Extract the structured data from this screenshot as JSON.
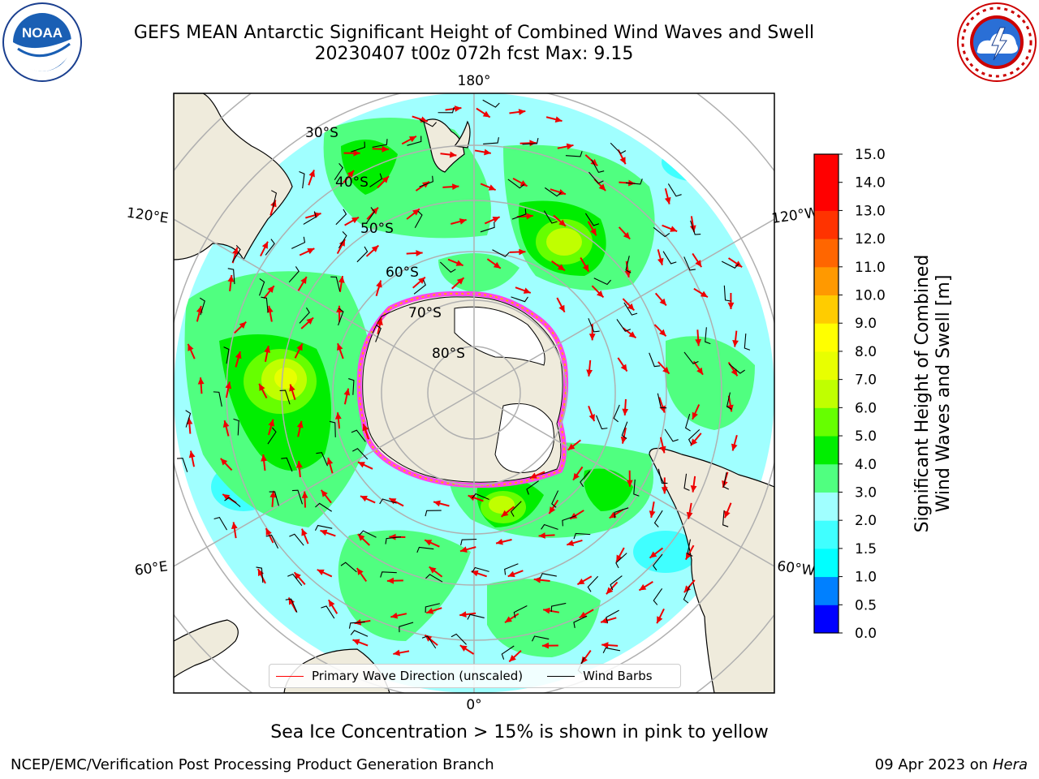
{
  "header": {
    "title_line1": "GEFS MEAN Antarctic Significant Height of Combined Wind Waves and Swell",
    "title_line2": "20230407 t00z 072h fcst   Max: 9.15"
  },
  "logos": {
    "left": {
      "text": "NOAA",
      "ring_text": "NATIONAL OCEANIC AND ATMOSPHERIC ADMINISTRATION · U.S. DEPARTMENT OF COMMERCE"
    },
    "right": {
      "ring_text": "NATIONAL WEATHER SERVICE"
    }
  },
  "map": {
    "projection": "south-polar-stereographic",
    "longitude_labels": {
      "top": "180°",
      "bottom": "0°",
      "upper_left": "120°E",
      "upper_right": "120°W",
      "lower_left": "60°E",
      "lower_right": "60°W"
    },
    "latitude_labels": [
      "30°S",
      "40°S",
      "50°S",
      "60°S",
      "70°S",
      "80°S"
    ]
  },
  "legend": {
    "items": [
      {
        "label": "Primary Wave Direction (unscaled)",
        "color": "#ff0000"
      },
      {
        "label": "Wind Barbs",
        "color": "#000000"
      }
    ]
  },
  "colorbar": {
    "label_line1": "Significant Height of Combined",
    "label_line2": "Wind Waves and Swell [m]",
    "ticks": [
      "0.0",
      "0.5",
      "1.0",
      "1.5",
      "2.0",
      "3.0",
      "4.0",
      "5.0",
      "6.0",
      "7.0",
      "8.0",
      "9.0",
      "10.0",
      "11.0",
      "12.0",
      "13.0",
      "14.0",
      "15.0"
    ],
    "colors": [
      "#0000ff",
      "#0080ff",
      "#00ffff",
      "#40ffff",
      "#a0ffff",
      "#50ff80",
      "#00ee00",
      "#66ff00",
      "#c0ff00",
      "#e8ff00",
      "#ffff00",
      "#ffcc00",
      "#ff9900",
      "#ff6600",
      "#ff3300",
      "#ff0000",
      "#ff0000"
    ]
  },
  "colors": {
    "land": "#efebdc",
    "ocean_base": "#a0ffff",
    "ice_edge": "#ff44ee",
    "ice_inner": "#ffaa00",
    "grid": "#b0b0b0"
  },
  "footer": {
    "caption": "Sea Ice Concentration > 15% is shown in pink to yellow",
    "left": "NCEP/EMC/Verification Post Processing Product Generation Branch",
    "right_prefix": "09 Apr 2023 on ",
    "right_host": "Hera"
  }
}
